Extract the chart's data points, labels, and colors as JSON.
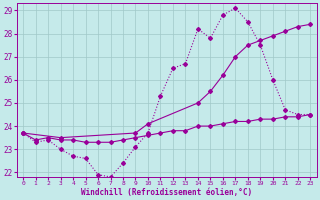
{
  "xlabel": "Windchill (Refroidissement éolien,°C)",
  "xlim": [
    -0.5,
    23.5
  ],
  "ylim": [
    21.8,
    29.3
  ],
  "yticks": [
    22,
    23,
    24,
    25,
    26,
    27,
    28,
    29
  ],
  "xticks": [
    0,
    1,
    2,
    3,
    4,
    5,
    6,
    7,
    8,
    9,
    10,
    11,
    12,
    13,
    14,
    15,
    16,
    17,
    18,
    19,
    20,
    21,
    22,
    23
  ],
  "bg_color": "#c5eaea",
  "line_color": "#990099",
  "grid_color": "#a0c8c8",
  "line1_x": [
    0,
    1,
    2,
    3,
    4,
    5,
    6,
    7,
    8,
    9,
    10,
    11,
    12,
    13,
    14,
    15,
    16,
    17,
    18,
    19,
    20,
    21,
    22,
    23
  ],
  "line1_y": [
    23.7,
    23.3,
    23.4,
    23.0,
    22.7,
    22.6,
    21.9,
    21.8,
    22.4,
    23.1,
    23.7,
    25.3,
    26.5,
    26.7,
    28.2,
    27.8,
    28.8,
    29.1,
    28.5,
    27.5,
    26.0,
    24.7,
    24.5,
    24.5
  ],
  "line2_x": [
    0,
    3,
    9,
    10,
    14,
    15,
    16,
    17,
    18,
    19,
    20,
    21,
    22,
    23
  ],
  "line2_y": [
    23.7,
    23.5,
    23.7,
    24.1,
    25.0,
    25.5,
    26.2,
    27.0,
    27.5,
    27.7,
    27.9,
    28.1,
    28.3,
    28.4
  ],
  "line3_x": [
    0,
    1,
    2,
    3,
    4,
    5,
    6,
    7,
    8,
    9,
    10,
    11,
    12,
    13,
    14,
    15,
    16,
    17,
    18,
    19,
    20,
    21,
    22,
    23
  ],
  "line3_y": [
    23.7,
    23.4,
    23.5,
    23.4,
    23.4,
    23.3,
    23.3,
    23.3,
    23.4,
    23.5,
    23.6,
    23.7,
    23.8,
    23.8,
    24.0,
    24.0,
    24.1,
    24.2,
    24.2,
    24.3,
    24.3,
    24.4,
    24.4,
    24.5
  ],
  "markersize": 2.0,
  "linewidth": 0.8
}
